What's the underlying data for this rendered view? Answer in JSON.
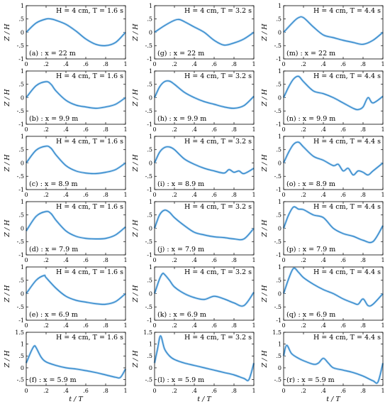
{
  "figure": {
    "xlabel": "t / T",
    "ylabel": "Z / H"
  },
  "chart_data": [
    {
      "type": "line",
      "panel": "(a) : x = 22 m",
      "header": "H = 4 cm, T = 1.6 s",
      "xlim": [
        0,
        1
      ],
      "ylim": [
        -1,
        1
      ],
      "x": [
        0,
        0.1,
        0.2,
        0.25,
        0.3,
        0.4,
        0.5,
        0.6,
        0.7,
        0.8,
        0.9,
        1
      ],
      "series": [
        {
          "values": [
            0,
            0.35,
            0.5,
            0.5,
            0.45,
            0.3,
            0.05,
            -0.25,
            -0.45,
            -0.5,
            -0.38,
            0
          ]
        }
      ]
    },
    {
      "type": "line",
      "panel": "(b) : x = 9.9 m",
      "header": "H = 4 cm, T = 1.6 s",
      "xlim": [
        0,
        1
      ],
      "ylim": [
        -1,
        1
      ],
      "x": [
        0,
        0.1,
        0.2,
        0.25,
        0.3,
        0.4,
        0.5,
        0.6,
        0.7,
        0.8,
        0.9,
        1
      ],
      "series": [
        {
          "values": [
            0,
            0.45,
            0.6,
            0.5,
            0.25,
            -0.1,
            -0.28,
            -0.35,
            -0.4,
            -0.35,
            -0.25,
            0
          ]
        }
      ]
    },
    {
      "type": "line",
      "panel": "(c) : x = 8.9 m",
      "header": "H = 4 cm, T = 1.6 s",
      "xlim": [
        0,
        1
      ],
      "ylim": [
        -1,
        1
      ],
      "x": [
        0,
        0.1,
        0.2,
        0.25,
        0.3,
        0.4,
        0.5,
        0.6,
        0.7,
        0.8,
        0.9,
        1
      ],
      "series": [
        {
          "values": [
            0,
            0.48,
            0.63,
            0.55,
            0.3,
            -0.1,
            -0.3,
            -0.38,
            -0.4,
            -0.35,
            -0.25,
            0
          ]
        }
      ]
    },
    {
      "type": "line",
      "panel": "(d) : x = 7.9 m",
      "header": "H = 4 cm, T = 1.6 s",
      "xlim": [
        0,
        1
      ],
      "ylim": [
        -1,
        1
      ],
      "x": [
        0,
        0.1,
        0.2,
        0.25,
        0.3,
        0.4,
        0.5,
        0.6,
        0.7,
        0.8,
        0.9,
        1
      ],
      "series": [
        {
          "values": [
            -0.1,
            0.45,
            0.63,
            0.55,
            0.3,
            -0.1,
            -0.3,
            -0.38,
            -0.4,
            -0.38,
            -0.25,
            0.05
          ]
        }
      ]
    },
    {
      "type": "line",
      "panel": "(e) : x = 6.9 m",
      "header": "H = 4 cm, T = 1.6 s",
      "xlim": [
        0,
        1
      ],
      "ylim": [
        -1,
        1
      ],
      "x": [
        0,
        0.1,
        0.18,
        0.2,
        0.3,
        0.4,
        0.5,
        0.6,
        0.7,
        0.8,
        0.9,
        1
      ],
      "series": [
        {
          "values": [
            0,
            0.5,
            0.68,
            0.6,
            0.2,
            -0.1,
            -0.25,
            -0.32,
            -0.38,
            -0.4,
            -0.3,
            0
          ]
        }
      ]
    },
    {
      "type": "line",
      "panel": "(f) : x = 5.9 m",
      "header": "H = 4 cm, T = 1.6 s",
      "xlim": [
        0,
        1
      ],
      "ylim": [
        -0.75,
        1.5
      ],
      "x": [
        0,
        0.05,
        0.08,
        0.1,
        0.15,
        0.2,
        0.3,
        0.4,
        0.5,
        0.6,
        0.7,
        0.8,
        0.9,
        0.95,
        1
      ],
      "series": [
        {
          "values": [
            0.2,
            0.7,
            0.92,
            0.85,
            0.45,
            0.25,
            0.1,
            0,
            -0.05,
            -0.12,
            -0.2,
            -0.3,
            -0.4,
            -0.4,
            -0.05
          ]
        }
      ]
    },
    {
      "type": "line",
      "panel": "(g) : x = 22 m",
      "header": "H = 4 cm, T = 3.2 s",
      "xlim": [
        0,
        1
      ],
      "ylim": [
        -1,
        1
      ],
      "x": [
        0,
        0.1,
        0.2,
        0.25,
        0.3,
        0.4,
        0.5,
        0.6,
        0.7,
        0.8,
        0.9,
        1
      ],
      "series": [
        {
          "values": [
            0,
            0.25,
            0.45,
            0.48,
            0.4,
            0.2,
            0,
            -0.3,
            -0.48,
            -0.4,
            -0.25,
            0
          ]
        }
      ]
    },
    {
      "type": "line",
      "panel": "(h) : x = 9.9 m",
      "header": "H = 4 cm, T = 3.2 s",
      "xlim": [
        0,
        1
      ],
      "ylim": [
        -1,
        1
      ],
      "x": [
        0,
        0.05,
        0.1,
        0.15,
        0.2,
        0.3,
        0.4,
        0.5,
        0.6,
        0.7,
        0.8,
        0.9,
        1
      ],
      "series": [
        {
          "values": [
            0,
            0.4,
            0.6,
            0.62,
            0.5,
            0.2,
            0,
            -0.15,
            -0.25,
            -0.35,
            -0.4,
            -0.3,
            0.05
          ]
        }
      ]
    },
    {
      "type": "line",
      "panel": "(i) : x = 8.9 m",
      "header": "H = 4 cm, T = 3.2 s",
      "xlim": [
        0,
        1
      ],
      "ylim": [
        -1,
        1
      ],
      "x": [
        0,
        0.05,
        0.1,
        0.15,
        0.2,
        0.3,
        0.4,
        0.5,
        0.6,
        0.7,
        0.75,
        0.8,
        0.85,
        0.9,
        1
      ],
      "series": [
        {
          "values": [
            0,
            0.4,
            0.58,
            0.6,
            0.5,
            0.15,
            -0.05,
            -0.2,
            -0.3,
            -0.38,
            -0.25,
            -0.35,
            -0.3,
            -0.4,
            -0.2
          ]
        }
      ]
    },
    {
      "type": "line",
      "panel": "(j) : x = 7.9 m",
      "header": "H = 4 cm, T = 3.2 s",
      "xlim": [
        0,
        1
      ],
      "ylim": [
        -1,
        1
      ],
      "x": [
        0,
        0.05,
        0.1,
        0.15,
        0.2,
        0.3,
        0.4,
        0.5,
        0.6,
        0.7,
        0.8,
        0.9,
        1
      ],
      "series": [
        {
          "values": [
            0,
            0.5,
            0.68,
            0.6,
            0.4,
            0.1,
            -0.15,
            -0.25,
            -0.32,
            -0.35,
            -0.4,
            -0.4,
            0
          ]
        }
      ]
    },
    {
      "type": "line",
      "panel": "(k) : x = 6.9 m",
      "header": "H = 4 cm, T = 3.2 s",
      "xlim": [
        0,
        1
      ],
      "ylim": [
        -1,
        1
      ],
      "x": [
        0,
        0.05,
        0.08,
        0.1,
        0.15,
        0.2,
        0.3,
        0.4,
        0.5,
        0.6,
        0.7,
        0.8,
        0.9,
        1
      ],
      "series": [
        {
          "values": [
            0,
            0.55,
            0.75,
            0.72,
            0.5,
            0.25,
            0,
            -0.15,
            -0.22,
            -0.1,
            -0.2,
            -0.35,
            -0.45,
            0.05
          ]
        }
      ]
    },
    {
      "type": "line",
      "panel": "(l) : x = 5.9 m",
      "header": "H = 4 cm, T = 3.2 s",
      "xlim": [
        0,
        1
      ],
      "ylim": [
        -0.75,
        1.5
      ],
      "x": [
        0,
        0.03,
        0.06,
        0.1,
        0.15,
        0.2,
        0.3,
        0.4,
        0.5,
        0.6,
        0.7,
        0.8,
        0.9,
        0.95,
        1
      ],
      "series": [
        {
          "values": [
            0.2,
            0.8,
            1.35,
            0.8,
            0.5,
            0.35,
            0.2,
            0.1,
            0,
            -0.1,
            -0.2,
            -0.3,
            -0.45,
            -0.5,
            0.2
          ]
        }
      ]
    },
    {
      "type": "line",
      "panel": "(m) : x = 22 m",
      "header": "H = 4 cm, T = 4.4 s",
      "xlim": [
        0,
        1
      ],
      "ylim": [
        -1,
        1
      ],
      "x": [
        0,
        0.1,
        0.15,
        0.2,
        0.3,
        0.4,
        0.5,
        0.6,
        0.7,
        0.8,
        0.9,
        1
      ],
      "series": [
        {
          "values": [
            0,
            0.4,
            0.55,
            0.55,
            0.2,
            -0.1,
            -0.2,
            -0.3,
            -0.38,
            -0.45,
            -0.3,
            0
          ]
        }
      ]
    },
    {
      "type": "line",
      "panel": "(n) : x = 9.9 m",
      "header": "H = 4 cm, T = 4.4 s",
      "xlim": [
        0,
        1
      ],
      "ylim": [
        -1,
        1
      ],
      "x": [
        0,
        0.05,
        0.1,
        0.15,
        0.2,
        0.3,
        0.4,
        0.5,
        0.6,
        0.7,
        0.75,
        0.8,
        0.85,
        0.9,
        1
      ],
      "series": [
        {
          "values": [
            0,
            0.4,
            0.7,
            0.8,
            0.6,
            0.25,
            0.15,
            0,
            -0.2,
            -0.4,
            -0.45,
            -0.35,
            0,
            -0.2,
            0.05
          ]
        }
      ]
    },
    {
      "type": "line",
      "panel": "(o) : x = 8.9 m",
      "header": "H = 4 cm, T = 4.4 s",
      "xlim": [
        0,
        1
      ],
      "ylim": [
        -1,
        1
      ],
      "x": [
        0,
        0.05,
        0.1,
        0.15,
        0.2,
        0.3,
        0.4,
        0.5,
        0.55,
        0.6,
        0.65,
        0.7,
        0.75,
        0.8,
        0.85,
        0.9,
        1
      ],
      "series": [
        {
          "values": [
            0,
            0.4,
            0.7,
            0.78,
            0.6,
            0.25,
            0.1,
            -0.1,
            -0.05,
            -0.3,
            -0.2,
            -0.45,
            -0.3,
            -0.35,
            -0.45,
            -0.3,
            0
          ]
        }
      ]
    },
    {
      "type": "line",
      "panel": "(p) : x = 7.9 m",
      "header": "H = 4 cm, T = 4.4 s",
      "xlim": [
        0,
        1
      ],
      "ylim": [
        -1,
        1
      ],
      "x": [
        0,
        0.05,
        0.1,
        0.15,
        0.2,
        0.3,
        0.4,
        0.5,
        0.6,
        0.7,
        0.8,
        0.9,
        1
      ],
      "series": [
        {
          "values": [
            0,
            0.5,
            0.8,
            0.72,
            0.7,
            0.5,
            0.4,
            0,
            -0.2,
            -0.3,
            -0.45,
            -0.5,
            0.1
          ]
        }
      ]
    },
    {
      "type": "line",
      "panel": "(q) : x = 6.9 m",
      "header": "H = 4 cm, T = 4.4 s",
      "xlim": [
        0,
        1
      ],
      "ylim": [
        -1,
        1
      ],
      "x": [
        0,
        0.05,
        0.1,
        0.15,
        0.2,
        0.3,
        0.4,
        0.5,
        0.6,
        0.7,
        0.75,
        0.8,
        0.85,
        0.9,
        1
      ],
      "series": [
        {
          "values": [
            0,
            0.55,
            0.95,
            0.8,
            0.6,
            0.35,
            0.15,
            0,
            -0.2,
            -0.35,
            -0.4,
            -0.2,
            -0.45,
            -0.4,
            0
          ]
        }
      ]
    },
    {
      "type": "line",
      "panel": "(r) : x = 5.9 m",
      "header": "H = 4 cm, T = 4.4 s",
      "xlim": [
        0,
        1
      ],
      "ylim": [
        -0.75,
        1.5
      ],
      "x": [
        0,
        0.03,
        0.08,
        0.15,
        0.2,
        0.3,
        0.35,
        0.4,
        0.45,
        0.5,
        0.6,
        0.7,
        0.8,
        0.9,
        0.95,
        1
      ],
      "series": [
        {
          "values": [
            0.5,
            0.95,
            0.6,
            0.4,
            0.3,
            0.15,
            0.2,
            0.4,
            0.2,
            0,
            -0.1,
            -0.2,
            -0.35,
            -0.55,
            -0.6,
            0.2
          ]
        }
      ]
    }
  ]
}
